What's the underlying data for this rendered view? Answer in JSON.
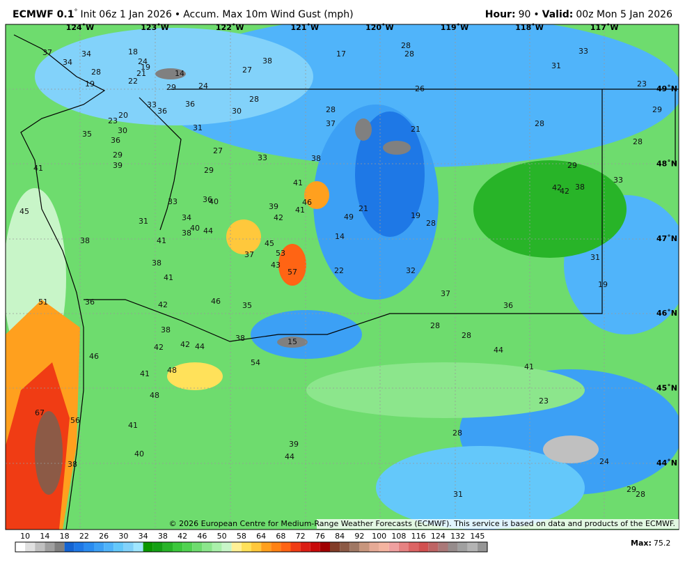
{
  "header": {
    "model": "ECMWF 0.1",
    "degree": "°",
    "subtitle": "Init 06z 1 Jan 2026",
    "sep": "•",
    "field": "Accum. Max 10m Wind Gust (mph)",
    "hour_label": "Hour:",
    "hour": 90,
    "valid_label": "Valid:",
    "valid": "00z Mon 5 Jan 2026"
  },
  "map": {
    "lon_labels": [
      "124˚W",
      "123˚W",
      "122˚W",
      "121˚W",
      "120˚W",
      "119˚W",
      "118˚W",
      "117˚W"
    ],
    "lat_labels": [
      "49˚N",
      "48˚N",
      "47˚N",
      "46˚N",
      "45˚N",
      "44˚N"
    ],
    "values": [
      37,
      34,
      18,
      34,
      24,
      19,
      28,
      21,
      14,
      22,
      19,
      29,
      24,
      17,
      28,
      28,
      38,
      27,
      31,
      33,
      26,
      23,
      28,
      30,
      28,
      33,
      36,
      20,
      23,
      36,
      37,
      21,
      28,
      29,
      31,
      30,
      35,
      36,
      28,
      27,
      33,
      38,
      29,
      39,
      41,
      29,
      29,
      42,
      42,
      38,
      33,
      41,
      33,
      36,
      40,
      39,
      46,
      41,
      49,
      21,
      19,
      28,
      42,
      45,
      31,
      34,
      40,
      44,
      38,
      14,
      41,
      38,
      45,
      53,
      37,
      43,
      57,
      22,
      32,
      31,
      38,
      41,
      37,
      19,
      51,
      36,
      42,
      46,
      35,
      36,
      28,
      28,
      38,
      38,
      15,
      42,
      44,
      42,
      44,
      46,
      54,
      41,
      41,
      48,
      48,
      23,
      67,
      56,
      41,
      28,
      39,
      40,
      44,
      38,
      24,
      29,
      28,
      31
    ],
    "copyright": "© 2026 European Centre for Medium-Range Weather Forecasts (ECMWF). This service is based on data and products of the ECMWF."
  },
  "colorbar": {
    "ticks": [
      10,
      14,
      18,
      22,
      26,
      30,
      34,
      38,
      42,
      46,
      50,
      58,
      64,
      68,
      72,
      76,
      84,
      92,
      100,
      108,
      116,
      124,
      132,
      145
    ],
    "colors": [
      "#ffffff",
      "#e0e0e0",
      "#c0c0c0",
      "#a0a0a0",
      "#808080",
      "#1464d2",
      "#1e78e6",
      "#2a8cf0",
      "#3ca0f5",
      "#50b4fa",
      "#64c8fa",
      "#82d2fa",
      "#a0e6ff",
      "#0a9600",
      "#14a014",
      "#28b428",
      "#3cc83c",
      "#50d250",
      "#6edc6e",
      "#8ce68c",
      "#aaf0aa",
      "#c8f5c8",
      "#fff096",
      "#ffe15a",
      "#ffc83c",
      "#ffa01e",
      "#ff8214",
      "#ff6414",
      "#f03c14",
      "#dc1e14",
      "#c80a0a",
      "#a00000",
      "#823c28",
      "#8c5a46",
      "#a07864",
      "#c8967d",
      "#e6aa96",
      "#f5b4a0",
      "#f0a0a0",
      "#e68282",
      "#dc6464",
      "#d25050",
      "#be6464",
      "#aa7878",
      "#968c8c",
      "#a0a0a0",
      "#b4b4b4",
      "#969696"
    ]
  },
  "max": {
    "label": "Max:",
    "value": 75.2
  }
}
